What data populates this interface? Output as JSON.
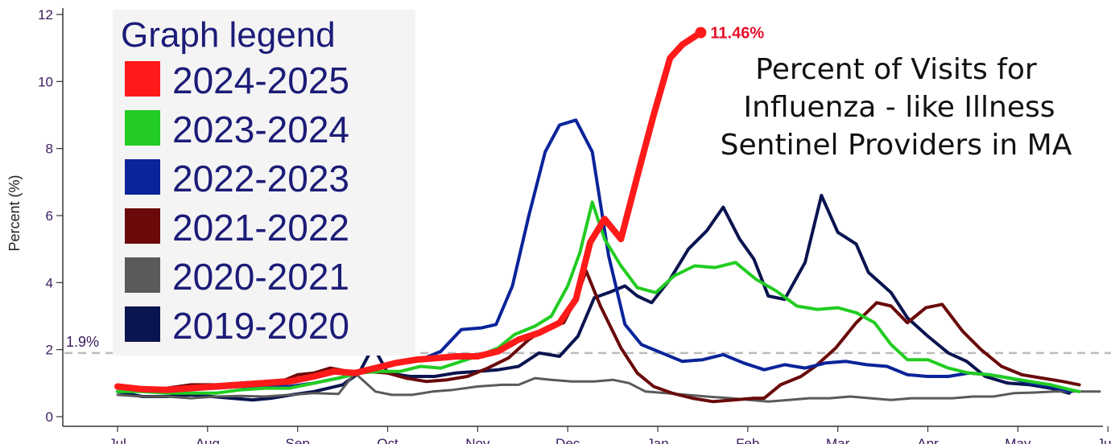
{
  "chart_data": {
    "type": "line",
    "title": [
      "Percent of Visits for",
      "Influenza - like Illness",
      "Sentinel Providers in MA"
    ],
    "xlabel": "",
    "ylabel": "Percent (%)",
    "ylim": [
      0,
      12
    ],
    "yticks": [
      0,
      2,
      4,
      6,
      8,
      10,
      12
    ],
    "xlim": [
      0,
      48
    ],
    "xticks": [
      {
        "label": "Jul",
        "x": 0
      },
      {
        "label": "Aug",
        "x": 4.4
      },
      {
        "label": "Sep",
        "x": 8.8
      },
      {
        "label": "Oct",
        "x": 13.2
      },
      {
        "label": "Nov",
        "x": 17.6
      },
      {
        "label": "Dec",
        "x": 22
      },
      {
        "label": "Jan",
        "x": 26.4
      },
      {
        "label": "Feb",
        "x": 30.8
      },
      {
        "label": "Mar",
        "x": 35.2
      },
      {
        "label": "Apr",
        "x": 39.6
      },
      {
        "label": "May",
        "x": 44
      },
      {
        "label": "Jun",
        "x": 48.4
      }
    ],
    "reference_line": {
      "value": 1.9,
      "label": "1.9%",
      "color": "#bbbbbb"
    },
    "annotation": {
      "label": "11.46%",
      "series": "2024-2025",
      "x": 28.5,
      "y": 11.46
    },
    "legend_title": "Graph legend",
    "legend_position": "top-left",
    "grid": false,
    "series": [
      {
        "name": "2019-2020",
        "color": "#0a1450",
        "width": 4,
        "points": [
          [
            0,
            0.75
          ],
          [
            0.4,
            0.7
          ],
          [
            1.2,
            0.6
          ],
          [
            2.4,
            0.6
          ],
          [
            3.6,
            0.65
          ],
          [
            4.6,
            0.6
          ],
          [
            5.6,
            0.55
          ],
          [
            6.6,
            0.5
          ],
          [
            7.5,
            0.55
          ],
          [
            8.5,
            0.65
          ],
          [
            9.6,
            0.75
          ],
          [
            11,
            0.95
          ],
          [
            11.8,
            1.3
          ],
          [
            12.5,
            2.1
          ],
          [
            13.2,
            1.3
          ],
          [
            14.3,
            1.2
          ],
          [
            15.5,
            1.2
          ],
          [
            16.5,
            1.3
          ],
          [
            17.6,
            1.35
          ],
          [
            18.6,
            1.4
          ],
          [
            19.6,
            1.5
          ],
          [
            20.6,
            1.9
          ],
          [
            21.6,
            1.8
          ],
          [
            22.5,
            2.4
          ],
          [
            23.3,
            3.55
          ],
          [
            24,
            3.7
          ],
          [
            24.8,
            3.9
          ],
          [
            25.4,
            3.6
          ],
          [
            26.1,
            3.4
          ],
          [
            27,
            4.1
          ],
          [
            27.9,
            5.0
          ],
          [
            28.8,
            5.55
          ],
          [
            29.6,
            6.25
          ],
          [
            30.4,
            5.3
          ],
          [
            31.1,
            4.7
          ],
          [
            31.8,
            3.6
          ],
          [
            32.6,
            3.5
          ],
          [
            33.6,
            4.6
          ],
          [
            34.4,
            6.6
          ],
          [
            35.2,
            5.5
          ],
          [
            36.1,
            5.15
          ],
          [
            36.7,
            4.3
          ],
          [
            37.8,
            3.7
          ],
          [
            38.6,
            2.95
          ],
          [
            39.6,
            2.4
          ],
          [
            40.6,
            1.9
          ],
          [
            41.5,
            1.65
          ],
          [
            42.4,
            1.2
          ],
          [
            43.5,
            1.0
          ],
          [
            44.6,
            0.95
          ],
          [
            45.6,
            0.85
          ],
          [
            46.5,
            0.7
          ]
        ]
      },
      {
        "name": "2020-2021",
        "color": "#5a5a5a",
        "width": 3,
        "points": [
          [
            0,
            0.65
          ],
          [
            1.2,
            0.6
          ],
          [
            2.4,
            0.6
          ],
          [
            3.6,
            0.55
          ],
          [
            4.8,
            0.6
          ],
          [
            6,
            0.62
          ],
          [
            7.2,
            0.6
          ],
          [
            8.4,
            0.65
          ],
          [
            9.6,
            0.7
          ],
          [
            10.8,
            0.68
          ],
          [
            11.6,
            1.3
          ],
          [
            12.6,
            0.75
          ],
          [
            13.4,
            0.65
          ],
          [
            14.4,
            0.65
          ],
          [
            15.4,
            0.75
          ],
          [
            16.4,
            0.8
          ],
          [
            17.6,
            0.9
          ],
          [
            18.8,
            0.95
          ],
          [
            19.6,
            0.95
          ],
          [
            20.4,
            1.15
          ],
          [
            21.2,
            1.1
          ],
          [
            22.2,
            1.05
          ],
          [
            23.3,
            1.05
          ],
          [
            24.2,
            1.1
          ],
          [
            25,
            1.0
          ],
          [
            25.8,
            0.75
          ],
          [
            26.8,
            0.7
          ],
          [
            27.8,
            0.65
          ],
          [
            28.8,
            0.6
          ],
          [
            30,
            0.55
          ],
          [
            30.9,
            0.5
          ],
          [
            31.8,
            0.45
          ],
          [
            32.8,
            0.5
          ],
          [
            33.8,
            0.55
          ],
          [
            34.8,
            0.55
          ],
          [
            35.8,
            0.6
          ],
          [
            36.8,
            0.55
          ],
          [
            37.8,
            0.5
          ],
          [
            38.8,
            0.55
          ],
          [
            39.8,
            0.55
          ],
          [
            40.8,
            0.55
          ],
          [
            41.8,
            0.6
          ],
          [
            42.8,
            0.6
          ],
          [
            43.8,
            0.7
          ],
          [
            44.8,
            0.72
          ],
          [
            45.8,
            0.75
          ],
          [
            47,
            0.75
          ],
          [
            48,
            0.75
          ]
        ]
      },
      {
        "name": "2021-2022",
        "color": "#6a0a0a",
        "width": 4,
        "points": [
          [
            0,
            0.85
          ],
          [
            1.2,
            0.8
          ],
          [
            2.4,
            0.85
          ],
          [
            3.6,
            0.95
          ],
          [
            4.8,
            0.95
          ],
          [
            6,
            1.0
          ],
          [
            7.2,
            1.05
          ],
          [
            8.2,
            1.1
          ],
          [
            8.8,
            1.25
          ],
          [
            9.6,
            1.3
          ],
          [
            10.4,
            1.45
          ],
          [
            11.3,
            1.35
          ],
          [
            12.2,
            1.35
          ],
          [
            13.2,
            1.3
          ],
          [
            14.1,
            1.15
          ],
          [
            15.1,
            1.05
          ],
          [
            16.1,
            1.1
          ],
          [
            17.1,
            1.2
          ],
          [
            18.1,
            1.45
          ],
          [
            19.1,
            1.75
          ],
          [
            20.1,
            2.3
          ],
          [
            21.1,
            2.7
          ],
          [
            21.8,
            2.8
          ],
          [
            22.4,
            3.5
          ],
          [
            22.9,
            4.35
          ],
          [
            23.6,
            3.3
          ],
          [
            24.6,
            2.05
          ],
          [
            25.4,
            1.3
          ],
          [
            26.2,
            0.9
          ],
          [
            27.1,
            0.7
          ],
          [
            28.1,
            0.55
          ],
          [
            29.1,
            0.45
          ],
          [
            30.1,
            0.5
          ],
          [
            31.1,
            0.55
          ],
          [
            31.6,
            0.55
          ],
          [
            32.4,
            0.95
          ],
          [
            33.4,
            1.2
          ],
          [
            34.1,
            1.5
          ],
          [
            35.1,
            2.05
          ],
          [
            36.1,
            2.8
          ],
          [
            37.1,
            3.4
          ],
          [
            37.8,
            3.3
          ],
          [
            38.6,
            2.8
          ],
          [
            39.5,
            3.25
          ],
          [
            40.3,
            3.35
          ],
          [
            41.3,
            2.55
          ],
          [
            42.2,
            2.0
          ],
          [
            43.2,
            1.5
          ],
          [
            44.2,
            1.25
          ],
          [
            45.2,
            1.15
          ],
          [
            46.2,
            1.05
          ],
          [
            47,
            0.95
          ]
        ]
      },
      {
        "name": "2022-2023",
        "color": "#0a249a",
        "width": 4,
        "points": [
          [
            0,
            0.9
          ],
          [
            1.2,
            0.8
          ],
          [
            2.4,
            0.8
          ],
          [
            3.6,
            0.85
          ],
          [
            4.8,
            0.85
          ],
          [
            6,
            0.9
          ],
          [
            7.2,
            0.9
          ],
          [
            8.4,
            0.9
          ],
          [
            9.6,
            1.0
          ],
          [
            10.8,
            1.15
          ],
          [
            11.8,
            1.3
          ],
          [
            12.8,
            1.5
          ],
          [
            13.8,
            1.65
          ],
          [
            14.8,
            1.7
          ],
          [
            15.8,
            1.95
          ],
          [
            16.8,
            2.6
          ],
          [
            17.8,
            2.65
          ],
          [
            18.5,
            2.75
          ],
          [
            19.3,
            3.9
          ],
          [
            20.1,
            6.0
          ],
          [
            20.9,
            7.9
          ],
          [
            21.6,
            8.7
          ],
          [
            22.4,
            8.85
          ],
          [
            23.2,
            7.9
          ],
          [
            24,
            4.8
          ],
          [
            24.8,
            2.75
          ],
          [
            25.6,
            2.15
          ],
          [
            26.6,
            1.9
          ],
          [
            27.6,
            1.65
          ],
          [
            28.6,
            1.7
          ],
          [
            29.6,
            1.85
          ],
          [
            30.6,
            1.6
          ],
          [
            31.6,
            1.4
          ],
          [
            32.6,
            1.55
          ],
          [
            33.6,
            1.45
          ],
          [
            34.6,
            1.6
          ],
          [
            35.6,
            1.65
          ],
          [
            36.6,
            1.55
          ],
          [
            37.6,
            1.5
          ],
          [
            38.6,
            1.25
          ],
          [
            39.6,
            1.2
          ],
          [
            40.6,
            1.2
          ],
          [
            41.6,
            1.3
          ],
          [
            42.6,
            1.25
          ],
          [
            43.6,
            1.15
          ],
          [
            44.6,
            1.0
          ],
          [
            45.6,
            0.9
          ],
          [
            46.6,
            0.75
          ]
        ]
      },
      {
        "name": "2023-2024",
        "color": "#22cc22",
        "width": 4,
        "points": [
          [
            0,
            0.75
          ],
          [
            1.2,
            0.75
          ],
          [
            2.4,
            0.7
          ],
          [
            3.6,
            0.7
          ],
          [
            4.8,
            0.7
          ],
          [
            6,
            0.8
          ],
          [
            7.2,
            0.85
          ],
          [
            8.4,
            0.85
          ],
          [
            9.6,
            1.0
          ],
          [
            10.8,
            1.15
          ],
          [
            11.8,
            1.3
          ],
          [
            12.8,
            1.35
          ],
          [
            13.8,
            1.35
          ],
          [
            14.8,
            1.5
          ],
          [
            15.8,
            1.45
          ],
          [
            16.8,
            1.65
          ],
          [
            17.8,
            1.85
          ],
          [
            18.6,
            2.05
          ],
          [
            19.4,
            2.45
          ],
          [
            20.4,
            2.7
          ],
          [
            21.2,
            3.0
          ],
          [
            22,
            3.9
          ],
          [
            22.6,
            4.9
          ],
          [
            23.2,
            6.4
          ],
          [
            23.8,
            5.3
          ],
          [
            24.6,
            4.5
          ],
          [
            25.4,
            3.85
          ],
          [
            26.3,
            3.7
          ],
          [
            27.2,
            4.2
          ],
          [
            28.2,
            4.5
          ],
          [
            29.2,
            4.45
          ],
          [
            30.2,
            4.6
          ],
          [
            31.2,
            4.1
          ],
          [
            32.2,
            3.75
          ],
          [
            33.2,
            3.3
          ],
          [
            34.2,
            3.2
          ],
          [
            35.2,
            3.25
          ],
          [
            36.1,
            3.1
          ],
          [
            37,
            2.8
          ],
          [
            37.8,
            2.15
          ],
          [
            38.6,
            1.7
          ],
          [
            39.6,
            1.7
          ],
          [
            40.6,
            1.45
          ],
          [
            41.6,
            1.3
          ],
          [
            42.6,
            1.25
          ],
          [
            43.6,
            1.15
          ],
          [
            44.6,
            1.05
          ],
          [
            45.6,
            0.95
          ],
          [
            46.6,
            0.8
          ],
          [
            47,
            0.75
          ]
        ]
      },
      {
        "name": "2024-2025",
        "color": "#ff1a1a",
        "width": 8,
        "points": [
          [
            0,
            0.9
          ],
          [
            1.2,
            0.82
          ],
          [
            2.4,
            0.8
          ],
          [
            3.6,
            0.85
          ],
          [
            4.8,
            0.9
          ],
          [
            6,
            0.95
          ],
          [
            7.2,
            1.0
          ],
          [
            8.4,
            1.05
          ],
          [
            9.6,
            1.2
          ],
          [
            10.6,
            1.35
          ],
          [
            11.6,
            1.3
          ],
          [
            12.6,
            1.45
          ],
          [
            13.6,
            1.6
          ],
          [
            14.6,
            1.7
          ],
          [
            15.6,
            1.75
          ],
          [
            16.6,
            1.8
          ],
          [
            17.6,
            1.8
          ],
          [
            18.6,
            1.95
          ],
          [
            19.6,
            2.3
          ],
          [
            20.6,
            2.5
          ],
          [
            21.6,
            2.8
          ],
          [
            22.4,
            3.5
          ],
          [
            23.1,
            5.2
          ],
          [
            23.8,
            5.9
          ],
          [
            24.6,
            5.3
          ],
          [
            25.5,
            7.4
          ],
          [
            26.2,
            9.0
          ],
          [
            27,
            10.7
          ],
          [
            27.6,
            11.1
          ],
          [
            28.5,
            11.46
          ]
        ]
      }
    ]
  }
}
